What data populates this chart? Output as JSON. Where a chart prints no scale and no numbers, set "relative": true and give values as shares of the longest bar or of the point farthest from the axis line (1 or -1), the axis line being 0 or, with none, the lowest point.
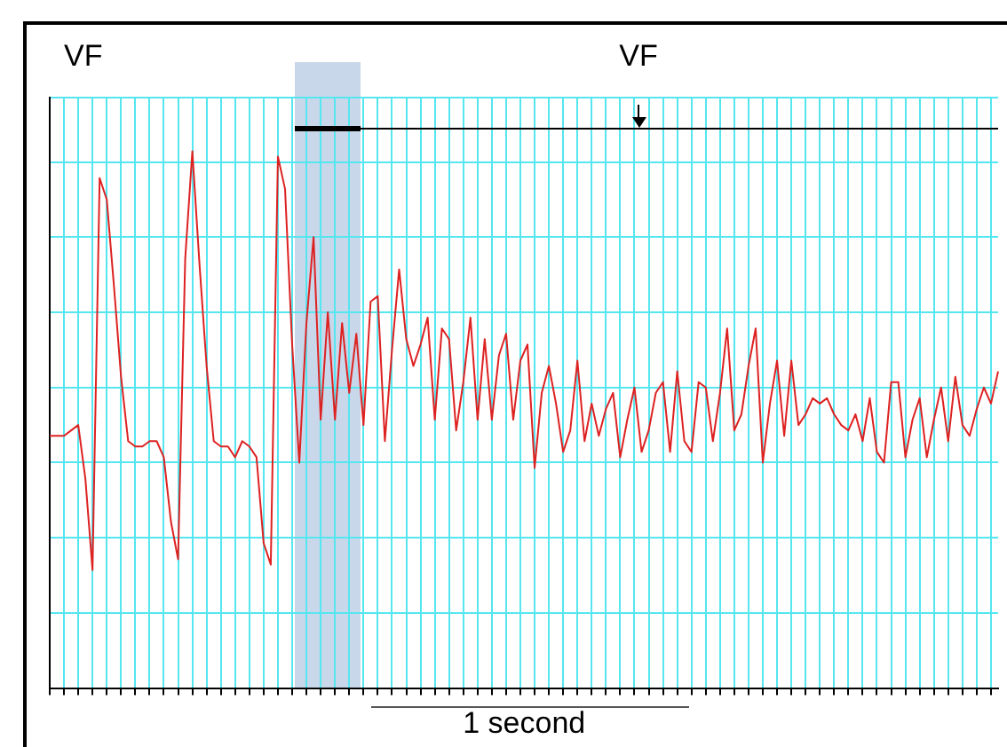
{
  "chart_data": {
    "type": "line",
    "relative": true,
    "color": "#dd2222",
    "marker": "none",
    "grid": true,
    "categories": [
      null,
      null,
      null,
      null,
      null,
      null,
      null,
      null,
      null,
      null,
      null,
      null,
      null,
      null,
      null,
      null,
      null,
      null,
      null,
      null,
      null,
      null,
      null,
      null,
      null,
      null,
      null,
      null,
      null,
      null,
      null,
      null,
      null,
      null,
      null,
      null,
      null,
      null,
      null,
      null,
      null,
      null,
      null,
      null,
      null,
      null,
      null,
      null,
      null,
      null,
      null,
      null,
      null,
      null,
      null,
      null,
      null,
      null,
      null,
      null,
      null,
      null,
      null,
      null,
      null,
      null,
      null,
      null,
      null,
      null,
      null,
      null,
      null,
      null,
      null,
      null,
      null,
      null,
      null,
      null,
      null,
      null,
      null,
      null,
      null,
      null,
      null,
      null,
      null,
      null,
      null,
      null,
      null,
      null,
      null,
      null,
      null,
      null,
      null,
      null,
      null,
      null,
      null,
      null,
      null,
      null,
      null,
      null,
      null,
      null,
      null,
      null,
      null,
      null,
      null,
      null,
      null,
      null,
      null,
      null,
      null,
      null,
      null,
      null,
      null,
      null,
      null,
      null,
      null,
      null,
      null,
      null,
      null,
      null
    ],
    "values": [
      0.47,
      0.47,
      0.47,
      0.48,
      0.49,
      0.39,
      0.22,
      0.95,
      0.91,
      0.75,
      0.58,
      0.46,
      0.45,
      0.45,
      0.46,
      0.46,
      0.43,
      0.31,
      0.24,
      0.8,
      1,
      0.79,
      0.6,
      0.46,
      0.45,
      0.45,
      0.43,
      0.46,
      0.45,
      0.43,
      0.27,
      0.23,
      0.99,
      0.93,
      0.64,
      0.42,
      0.68,
      0.84,
      0.5,
      0.7,
      0.5,
      0.68,
      0.55,
      0.66,
      0.49,
      0.72,
      0.73,
      0.46,
      0.63,
      0.78,
      0.65,
      0.6,
      0.64,
      0.69,
      0.5,
      0.67,
      0.65,
      0.48,
      0.57,
      0.69,
      0.5,
      0.65,
      0.5,
      0.62,
      0.66,
      0.5,
      0.61,
      0.64,
      0.41,
      0.55,
      0.6,
      0.53,
      0.44,
      0.48,
      0.61,
      0.46,
      0.53,
      0.47,
      0.52,
      0.55,
      0.43,
      0.5,
      0.56,
      0.44,
      0.48,
      0.55,
      0.57,
      0.44,
      0.59,
      0.46,
      0.44,
      0.57,
      0.56,
      0.46,
      0.55,
      0.67,
      0.48,
      0.51,
      0.6,
      0.67,
      0.42,
      0.53,
      0.61,
      0.47,
      0.61,
      0.49,
      0.51,
      0.54,
      0.53,
      0.54,
      0.51,
      0.49,
      0.48,
      0.51,
      0.46,
      0.54,
      0.44,
      0.42,
      0.57,
      0.57,
      0.43,
      0.5,
      0.54,
      0.43,
      0.5,
      0.56,
      0.46,
      0.58,
      0.49,
      0.47,
      0.52,
      0.56,
      0.53,
      0.59
    ],
    "annotations": [
      "VF",
      "VF",
      "1 second"
    ]
  }
}
